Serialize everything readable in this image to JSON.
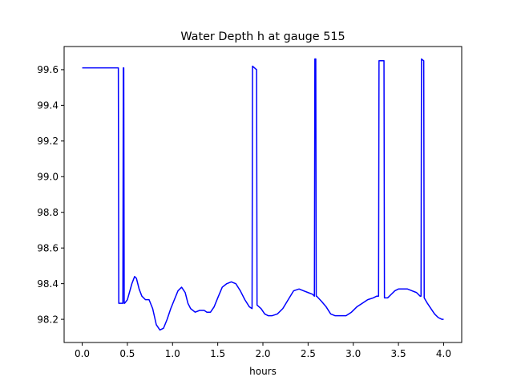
{
  "chart_data": {
    "type": "line",
    "title": "Water Depth h at gauge 515",
    "xlabel": "hours",
    "ylabel": "",
    "xlim": [
      -0.2,
      4.2
    ],
    "ylim": [
      98.07,
      99.73
    ],
    "grid": false,
    "x_ticks": [
      {
        "value": 0.0,
        "label": "0.0"
      },
      {
        "value": 0.5,
        "label": "0.5"
      },
      {
        "value": 1.0,
        "label": "1.0"
      },
      {
        "value": 1.5,
        "label": "1.5"
      },
      {
        "value": 2.0,
        "label": "2.0"
      },
      {
        "value": 2.5,
        "label": "2.5"
      },
      {
        "value": 3.0,
        "label": "3.0"
      },
      {
        "value": 3.5,
        "label": "3.5"
      },
      {
        "value": 4.0,
        "label": "4.0"
      }
    ],
    "y_ticks": [
      {
        "value": 98.2,
        "label": "98.2"
      },
      {
        "value": 98.4,
        "label": "98.4"
      },
      {
        "value": 98.6,
        "label": "98.6"
      },
      {
        "value": 98.8,
        "label": "98.8"
      },
      {
        "value": 99.0,
        "label": "99.0"
      },
      {
        "value": 99.2,
        "label": "99.2"
      },
      {
        "value": 99.4,
        "label": "99.4"
      },
      {
        "value": 99.6,
        "label": "99.6"
      }
    ],
    "series": [
      {
        "color": "#0000ff",
        "x": [
          0.0,
          0.4,
          0.405,
          0.45,
          0.455,
          0.46,
          0.465,
          0.47,
          0.5,
          0.55,
          0.58,
          0.6,
          0.63,
          0.66,
          0.7,
          0.74,
          0.78,
          0.82,
          0.86,
          0.9,
          0.94,
          0.98,
          1.02,
          1.06,
          1.1,
          1.14,
          1.17,
          1.2,
          1.25,
          1.3,
          1.35,
          1.38,
          1.42,
          1.46,
          1.5,
          1.55,
          1.6,
          1.65,
          1.7,
          1.75,
          1.8,
          1.85,
          1.88,
          1.885,
          1.93,
          1.935,
          1.98,
          2.02,
          2.06,
          2.1,
          2.16,
          2.22,
          2.28,
          2.34,
          2.4,
          2.45,
          2.5,
          2.55,
          2.57,
          2.575,
          2.585,
          2.59,
          2.595,
          2.65,
          2.7,
          2.75,
          2.8,
          2.86,
          2.92,
          2.98,
          3.04,
          3.1,
          3.16,
          3.22,
          3.26,
          3.28,
          3.285,
          3.34,
          3.345,
          3.38,
          3.42,
          3.46,
          3.5,
          3.55,
          3.6,
          3.65,
          3.7,
          3.74,
          3.75,
          3.755,
          3.78,
          3.785,
          3.82,
          3.86,
          3.9,
          3.94,
          3.98,
          4.0
        ],
        "y": [
          99.61,
          99.61,
          98.29,
          98.29,
          99.61,
          99.61,
          98.29,
          98.29,
          98.31,
          98.4,
          98.44,
          98.43,
          98.37,
          98.33,
          98.31,
          98.31,
          98.26,
          98.17,
          98.14,
          98.15,
          98.2,
          98.26,
          98.31,
          98.36,
          98.38,
          98.35,
          98.29,
          98.26,
          98.24,
          98.25,
          98.25,
          98.24,
          98.24,
          98.27,
          98.32,
          98.38,
          98.4,
          98.41,
          98.4,
          98.36,
          98.31,
          98.27,
          98.26,
          99.62,
          99.6,
          98.28,
          98.26,
          98.23,
          98.22,
          98.22,
          98.23,
          98.26,
          98.31,
          98.36,
          98.37,
          98.36,
          98.35,
          98.34,
          98.33,
          99.66,
          99.66,
          98.33,
          98.33,
          98.3,
          98.27,
          98.23,
          98.22,
          98.22,
          98.22,
          98.24,
          98.27,
          98.29,
          98.31,
          98.32,
          98.33,
          98.33,
          99.65,
          99.65,
          98.32,
          98.32,
          98.34,
          98.36,
          98.37,
          98.37,
          98.37,
          98.36,
          98.35,
          98.33,
          98.33,
          99.66,
          99.65,
          98.32,
          98.29,
          98.26,
          98.23,
          98.21,
          98.2,
          98.2
        ]
      }
    ]
  }
}
